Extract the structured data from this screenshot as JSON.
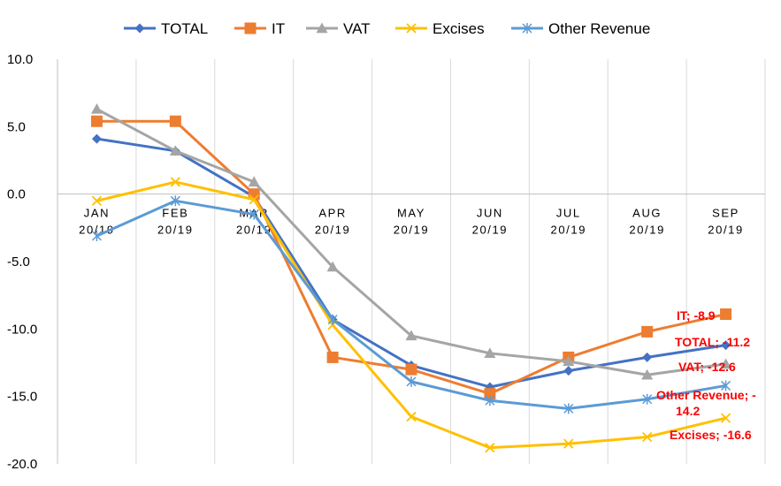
{
  "chart_data": {
    "type": "line",
    "title": "",
    "xlabel": "",
    "ylabel": "",
    "ylim": [
      -20,
      10
    ],
    "yticks": [
      "10.0",
      "5.0",
      "0.0",
      "-5.0",
      "-10.0",
      "-15.0",
      "-20.0"
    ],
    "grid": "vertical",
    "legend_position": "top",
    "categories": [
      [
        "JAN",
        "20/19"
      ],
      [
        "FEB",
        "20/19"
      ],
      [
        "MAR",
        "20/19"
      ],
      [
        "APR",
        "20/19"
      ],
      [
        "MAY",
        "20/19"
      ],
      [
        "JUN",
        "20/19"
      ],
      [
        "JUL",
        "20/19"
      ],
      [
        "AUG",
        "20/19"
      ],
      [
        "SEP",
        "20/19"
      ]
    ],
    "series": [
      {
        "name": "TOTAL",
        "color": "#4472C4",
        "marker": "diamond",
        "values": [
          4.1,
          3.2,
          -0.2,
          -9.3,
          -12.7,
          -14.3,
          -13.1,
          -12.1,
          -11.2
        ]
      },
      {
        "name": "IT",
        "color": "#ED7D31",
        "marker": "square",
        "values": [
          5.4,
          5.4,
          0.0,
          -12.1,
          -13.0,
          -14.8,
          -12.1,
          -10.2,
          -8.9
        ]
      },
      {
        "name": "VAT",
        "color": "#A5A5A5",
        "marker": "triangle",
        "values": [
          6.3,
          3.2,
          0.9,
          -5.4,
          -10.5,
          -11.8,
          -12.4,
          -13.4,
          -12.6
        ]
      },
      {
        "name": "Excises",
        "color": "#FFC000",
        "marker": "x",
        "values": [
          -0.5,
          0.9,
          -0.4,
          -9.7,
          -16.5,
          -18.8,
          -18.5,
          -18.0,
          -16.6
        ]
      },
      {
        "name": "Other Revenue",
        "color": "#5B9BD5",
        "marker": "star",
        "values": [
          -3.1,
          -0.5,
          -1.5,
          -9.3,
          -13.9,
          -15.3,
          -15.9,
          -15.2,
          -14.2
        ]
      }
    ],
    "end_labels": [
      {
        "lines": [
          "IT; -8.9"
        ]
      },
      {
        "lines": [
          "TOTAL; -11.2"
        ]
      },
      {
        "lines": [
          "VAT; -12.6"
        ]
      },
      {
        "lines": [
          "Other Revenue; -",
          "14.2"
        ]
      },
      {
        "lines": [
          "Excises; -16.6"
        ]
      }
    ]
  }
}
